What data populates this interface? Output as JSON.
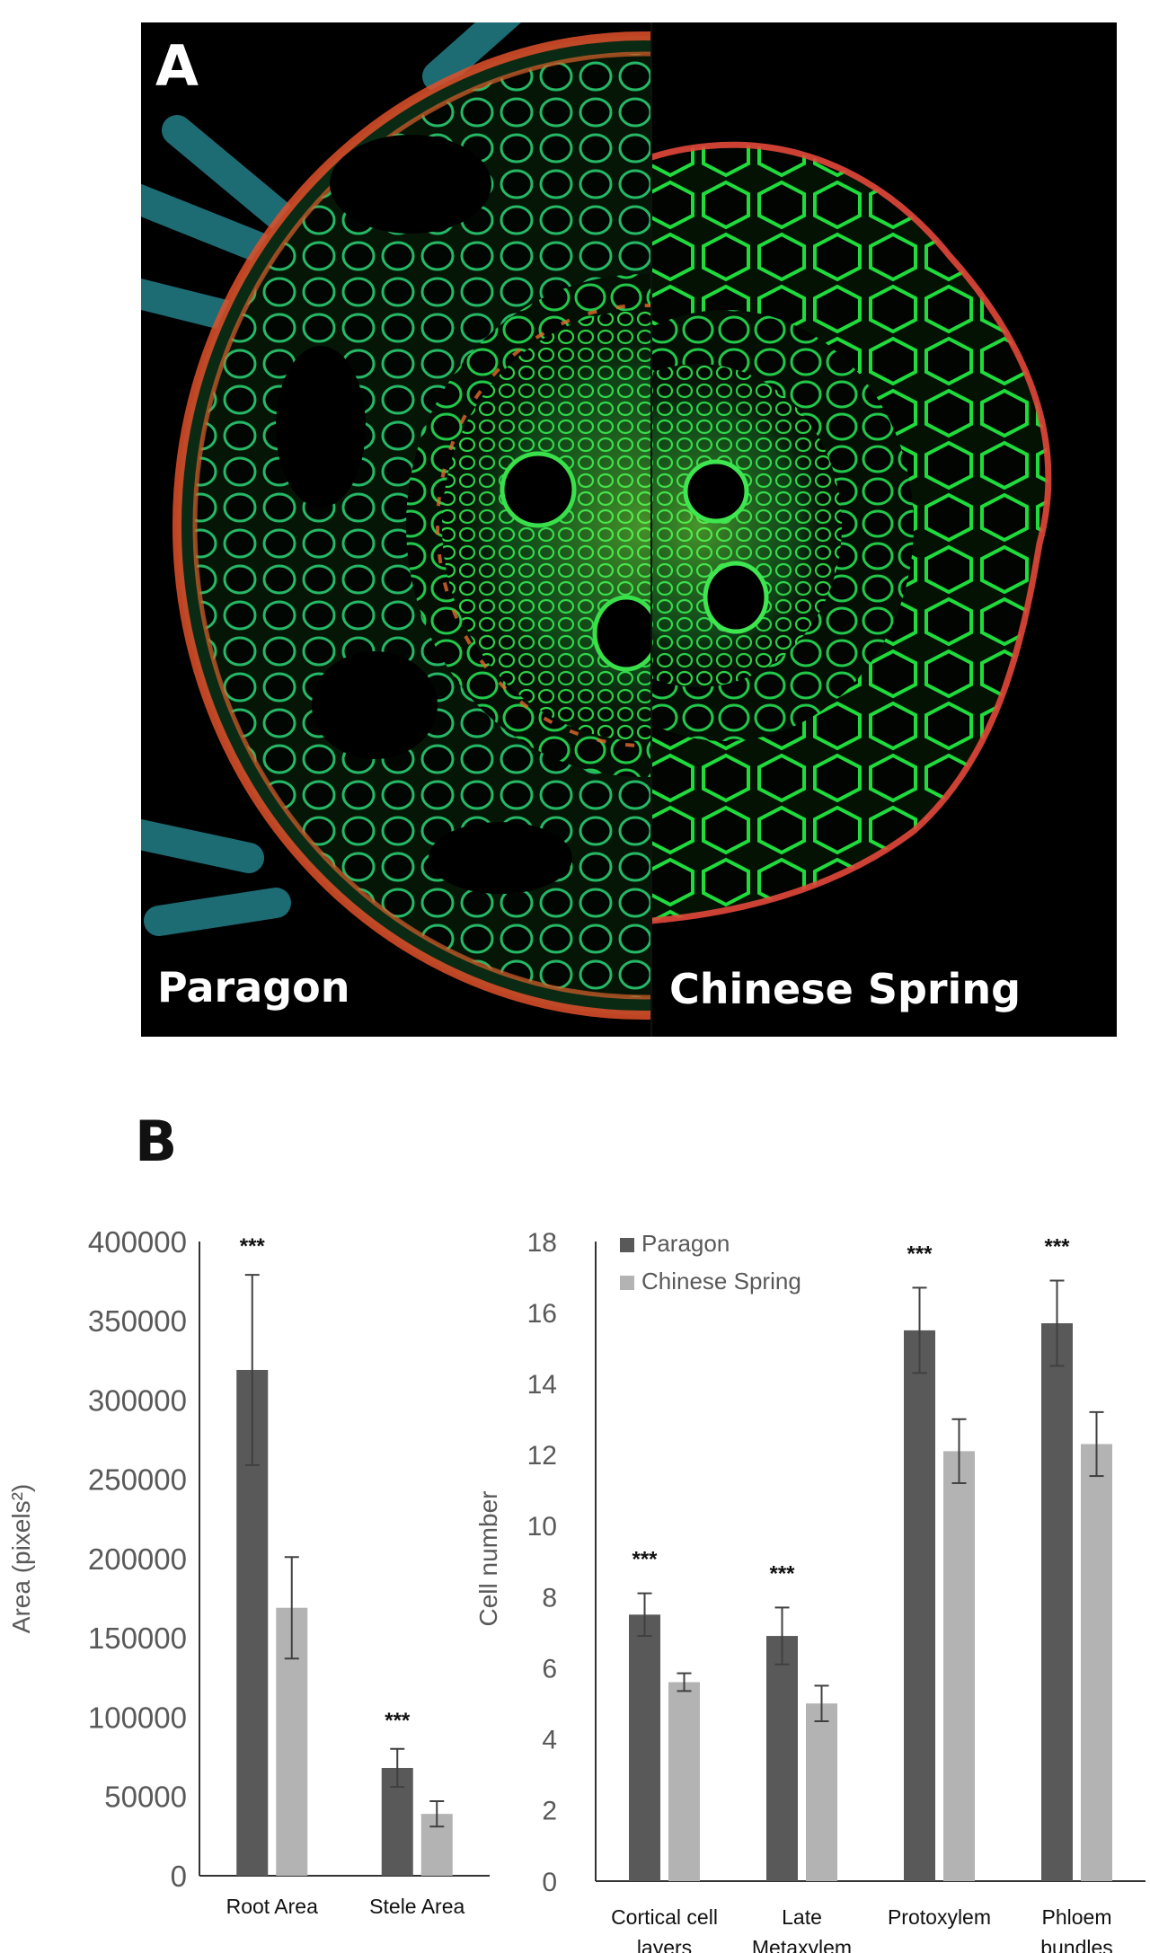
{
  "panel_a": {
    "label": "A",
    "left_caption": "Paragon",
    "right_caption": "Chinese Spring"
  },
  "panel_b": {
    "label": "B"
  },
  "colors": {
    "paragon": "#595959",
    "chinese_spring": "#b3b3b3"
  },
  "chart_data": [
    {
      "type": "bar",
      "title": "",
      "xlabel": "",
      "ylabel": "Area (pixels²)",
      "ylim": [
        0,
        400000
      ],
      "yticks": [
        "0",
        "50000",
        "100000",
        "150000",
        "200000",
        "250000",
        "300000",
        "350000",
        "400000"
      ],
      "categories": [
        "Root Area",
        "Stele Area"
      ],
      "series": [
        {
          "name": "Paragon",
          "values": [
            319000,
            68000
          ],
          "errors": [
            60000,
            12000
          ]
        },
        {
          "name": "Chinese Spring",
          "values": [
            169000,
            39000
          ],
          "errors": [
            32000,
            8000
          ]
        }
      ],
      "significance": [
        "***",
        "***"
      ],
      "legend": "none",
      "grid": false
    },
    {
      "type": "bar",
      "title": "",
      "xlabel": "",
      "ylabel": "Cell number",
      "ylim": [
        0,
        18
      ],
      "yticks": [
        "0",
        "2",
        "4",
        "6",
        "8",
        "10",
        "12",
        "14",
        "16",
        "18"
      ],
      "categories": [
        [
          "Cortical cell",
          "layers"
        ],
        [
          "Late",
          "Metaxylem"
        ],
        [
          "Protoxylem"
        ],
        [
          "Phloem",
          "bundles"
        ]
      ],
      "series": [
        {
          "name": "Paragon",
          "values": [
            7.5,
            6.9,
            15.5,
            15.7
          ],
          "errors": [
            0.6,
            0.8,
            1.2,
            1.2
          ]
        },
        {
          "name": "Chinese Spring",
          "values": [
            5.6,
            5.0,
            12.1,
            12.3
          ],
          "errors": [
            0.25,
            0.5,
            0.9,
            0.9
          ]
        }
      ],
      "significance": [
        "***",
        "***",
        "***",
        "***"
      ],
      "legend": "top-left",
      "grid": false
    }
  ]
}
